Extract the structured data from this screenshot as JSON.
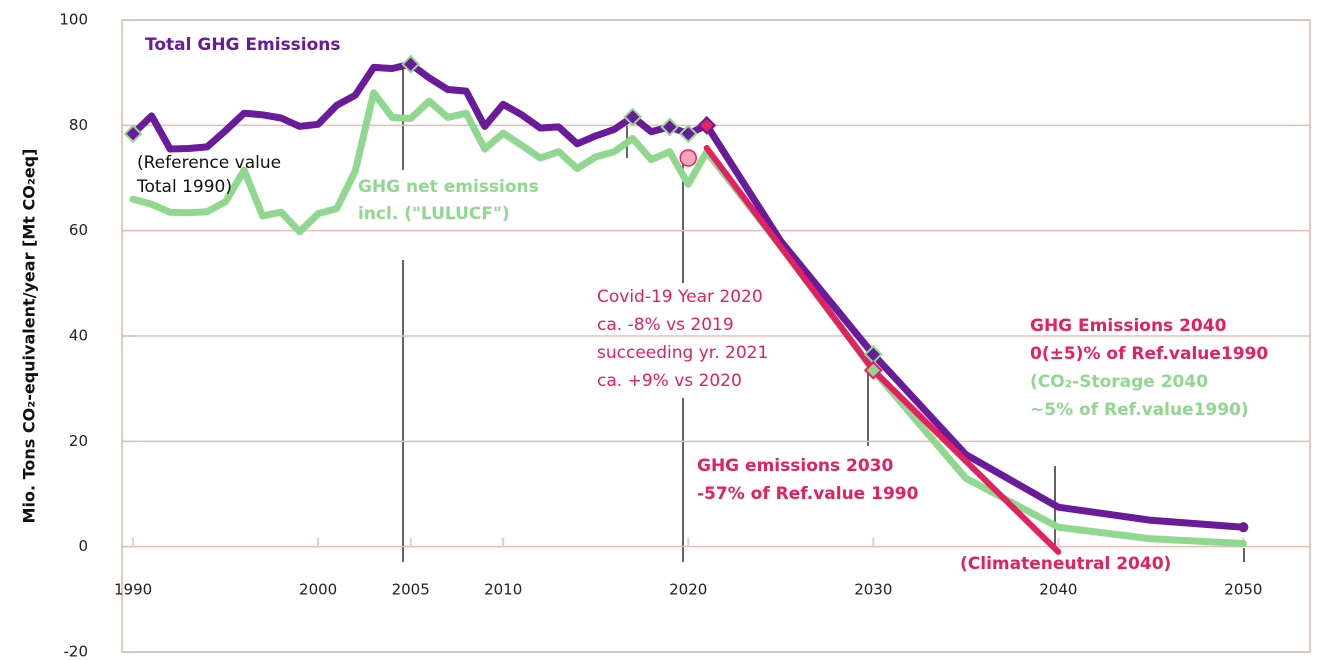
{
  "chart_data": {
    "type": "line",
    "ylabel": "Mio. Tons CO₂-equivalent/year [Mt CO₂eq]",
    "xlim": [
      1989.4,
      2053.6
    ],
    "ylim": [
      -20,
      100
    ],
    "xticks": [
      1990,
      2000,
      2005,
      2010,
      2020,
      2030,
      2040,
      2050
    ],
    "yticks": [
      -20,
      0,
      20,
      40,
      60,
      80,
      100
    ],
    "grid": true,
    "series": [
      {
        "name": "Total GHG Emissions",
        "color": "#6a1b9a",
        "x": [
          1990,
          1991,
          1992,
          1993,
          1994,
          1995,
          1996,
          1997,
          1998,
          1999,
          2000,
          2001,
          2002,
          2003,
          2004,
          2005,
          2006,
          2007,
          2008,
          2009,
          2010,
          2011,
          2012,
          2013,
          2014,
          2015,
          2016,
          2017,
          2018,
          2019,
          2020,
          2021,
          2025,
          2030,
          2035,
          2040,
          2045,
          2050
        ],
        "values": [
          78.4,
          81.8,
          75.5,
          75.6,
          75.9,
          79,
          82.3,
          82,
          81.4,
          79.8,
          80.2,
          83.8,
          85.7,
          91,
          90.8,
          91.6,
          89,
          86.8,
          86.5,
          79.8,
          84,
          82,
          79.5,
          79.7,
          76.5,
          78,
          79.2,
          81.6,
          78.8,
          79.7,
          78.4,
          80,
          58,
          36.5,
          17.5,
          7.5,
          5,
          3.7
        ]
      },
      {
        "name": "GHG net emissions incl. (\"LULUCF\")",
        "color": "#90d890",
        "x": [
          1990,
          1991,
          1992,
          1993,
          1994,
          1995,
          1996,
          1997,
          1998,
          1999,
          2000,
          2001,
          2002,
          2003,
          2004,
          2005,
          2006,
          2007,
          2008,
          2009,
          2010,
          2011,
          2012,
          2013,
          2014,
          2015,
          2016,
          2017,
          2018,
          2019,
          2020,
          2021,
          2025,
          2030,
          2035,
          2040,
          2045,
          2050
        ],
        "values": [
          66,
          65,
          63.5,
          63.4,
          63.6,
          65.5,
          71.5,
          62.8,
          63.5,
          59.8,
          63.2,
          64.2,
          71.3,
          86.2,
          81.5,
          81.3,
          84.6,
          81.5,
          82.3,
          75.5,
          78.5,
          76.2,
          73.8,
          75,
          71.8,
          74,
          75,
          77.5,
          73.5,
          75,
          68.8,
          75,
          57,
          33.5,
          13,
          3.7,
          1.5,
          0.6
        ]
      },
      {
        "name": "(Climateneutral 2040)",
        "color": "#e3215f",
        "x": [
          2021,
          2030,
          2040
        ],
        "values": [
          75.7,
          33.5,
          -1
        ]
      }
    ],
    "annotations": [
      {
        "text": "Total GHG Emissions",
        "color": "#6a1b9a"
      },
      {
        "text": "(Reference value",
        "color": "#111111"
      },
      {
        "text": "Total 1990)",
        "color": "#111111"
      },
      {
        "text": "GHG net emissions",
        "color": "#90d890"
      },
      {
        "text": "incl. (\"LULUCF\")",
        "color": "#90d890"
      },
      {
        "text": "Covid-19 Year 2020",
        "color": "#e3215f"
      },
      {
        "text": "ca. -8% vs 2019",
        "color": "#e3215f"
      },
      {
        "text": "succeeding yr. 2021",
        "color": "#e3215f"
      },
      {
        "text": "ca. +9% vs 2020",
        "color": "#e3215f"
      },
      {
        "text": "GHG Emissions 2040",
        "color": "#e3215f"
      },
      {
        "text": "0(±5)% of Ref.value1990",
        "color": "#e3215f"
      },
      {
        "text": "(CO₂-Storage 2040",
        "color": "#90d890"
      },
      {
        "text": "~5% of Ref.value1990)",
        "color": "#90d890"
      },
      {
        "text": "GHG emissions 2030",
        "color": "#e3215f"
      },
      {
        "text": "-57% of Ref.value 1990",
        "color": "#e3215f"
      },
      {
        "text": "(Climateneutral 2040)",
        "color": "#e3215f"
      }
    ]
  }
}
